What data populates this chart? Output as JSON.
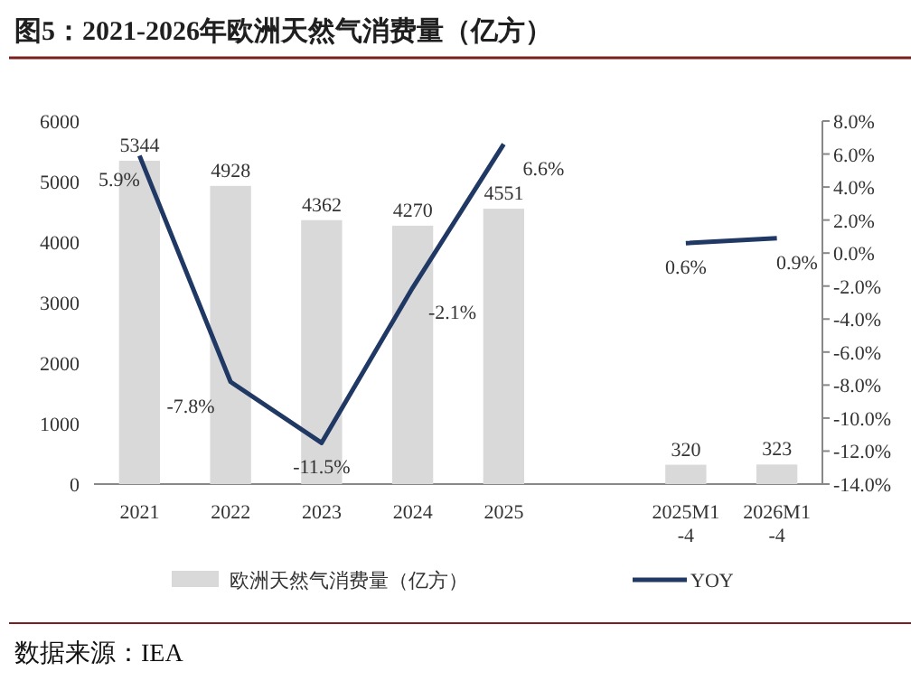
{
  "chart_data": {
    "type": "bar",
    "title": "图5：2021-2026年欧洲天然气消费量（亿方）",
    "categories": [
      "2021",
      "2022",
      "2023",
      "2024",
      "2025",
      null,
      "2025M1-4",
      "2026M1-4"
    ],
    "series": [
      {
        "name": "欧洲天然气消费量（亿方）",
        "color": "#d9d9d9",
        "values": [
          5344,
          4928,
          4362,
          4270,
          4551,
          null,
          320,
          323
        ],
        "value_labels": [
          "5344",
          "4928",
          "4362",
          "4270",
          "4551",
          null,
          "320",
          "323"
        ]
      },
      {
        "name": "YOY",
        "type": "line",
        "axis": "y2",
        "color": "#203864",
        "values": [
          5.9,
          -7.8,
          -11.5,
          -2.1,
          6.6,
          null,
          0.6,
          0.9
        ],
        "value_labels": [
          "5.9%",
          "-7.8%",
          "-11.5%",
          "-2.1%",
          "6.6%",
          null,
          "0.6%",
          "0.9%"
        ]
      }
    ],
    "ylim": [
      0,
      6000
    ],
    "yticks": [
      0,
      1000,
      2000,
      3000,
      4000,
      5000,
      6000
    ],
    "y2lim": [
      -14,
      8
    ],
    "y2ticks": [
      {
        "value": 8,
        "label": "8.0%"
      },
      {
        "value": 6,
        "label": "6.0%"
      },
      {
        "value": 4,
        "label": "4.0%"
      },
      {
        "value": 2,
        "label": "2.0%"
      },
      {
        "value": 0,
        "label": "0.0%"
      },
      {
        "value": -2,
        "label": "-2.0%"
      },
      {
        "value": -4,
        "label": "-4.0%"
      },
      {
        "value": -6,
        "label": "-6.0%"
      },
      {
        "value": -8,
        "label": "-8.0%"
      },
      {
        "value": -10,
        "label": "-10.0%"
      },
      {
        "value": -12,
        "label": "-12.0%"
      },
      {
        "value": -14,
        "label": "-14.0%"
      }
    ],
    "grid": false,
    "legend": "bottom",
    "marker": "none",
    "line_style": "solid",
    "annotations": [
      "数据来源：IEA"
    ]
  }
}
